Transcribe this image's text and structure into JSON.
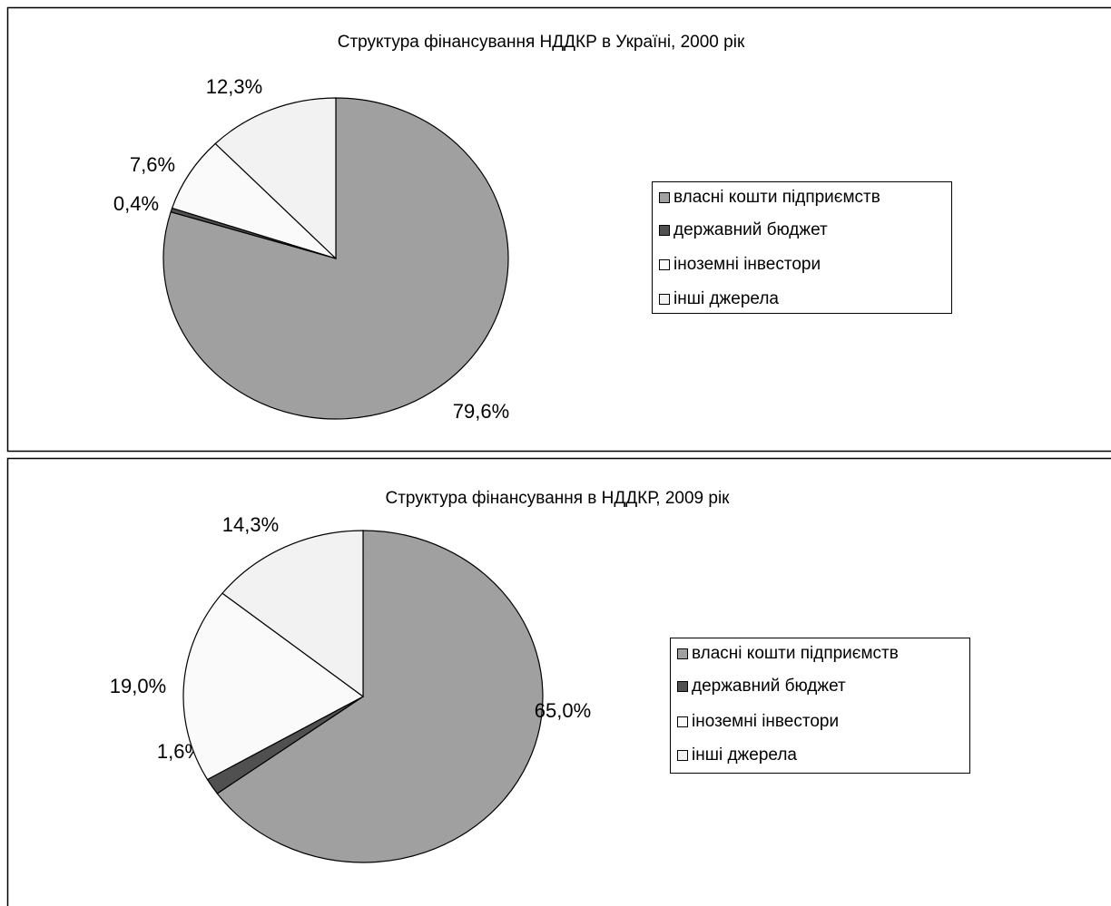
{
  "chart_data": [
    {
      "type": "pie",
      "title": "Структура фінансування НДДКР в Україні, 2000 рік",
      "categories": [
        "власні кошти підприємств",
        "державний бюджет",
        "іноземні інвестори",
        "інші джерела"
      ],
      "values": [
        79.6,
        0.4,
        7.6,
        12.3
      ],
      "value_labels": [
        "79,6%",
        "0,4%",
        "7,6%",
        "12,3%"
      ],
      "colors": [
        "#a0a0a0",
        "#505050",
        "#fafafa",
        "#f2f2f2"
      ],
      "legend": "right"
    },
    {
      "type": "pie",
      "title": "Структура фінансування в НДДКР, 2009 рік",
      "categories": [
        "власні кошти підприємств",
        "державний бюджет",
        "іноземні інвестори",
        "інші джерела"
      ],
      "values": [
        65.0,
        1.6,
        19.0,
        14.3
      ],
      "value_labels": [
        "65,0%",
        "1,6%",
        "19,0%",
        "14,3%"
      ],
      "colors": [
        "#a0a0a0",
        "#505050",
        "#fafafa",
        "#f2f2f2"
      ],
      "legend": "right"
    }
  ]
}
